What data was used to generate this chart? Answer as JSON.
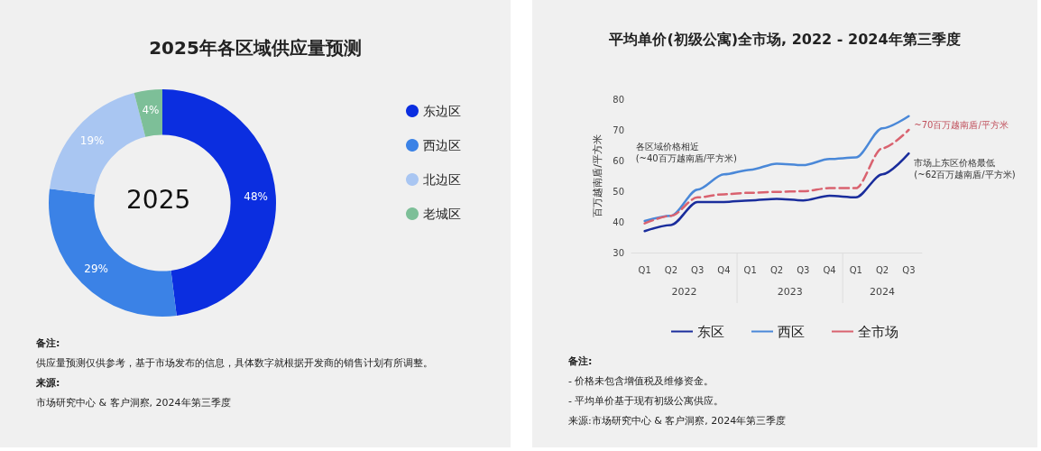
{
  "chart_data": [
    {
      "type": "donut",
      "title": "2025年各区域供应量预测",
      "categories": [
        "东边区",
        "西边区",
        "北边区",
        "老城区"
      ],
      "values": [
        48,
        29,
        19,
        4
      ],
      "colors": [
        "#0b2ee0",
        "#3b82e6",
        "#a9c6f2",
        "#7dbf98"
      ],
      "value_labels": [
        "48%",
        "29%",
        "19%",
        "4%"
      ],
      "legend": "right",
      "annotations": [
        "2025",
        "备注:",
        "供应量预测仅供参考，基于市场发布的信息，具体数字就根据开发商的销售计划有所调整。",
        "来源:",
        "市场研究中心 & 客户洞察, 2024年第三季度"
      ]
    },
    {
      "type": "line",
      "title": "平均单价(初级公寓)全市场, 2022 - 2024年第三季度",
      "ylabel": "百万越南盾/平方米",
      "categories": [
        "Q1",
        "Q2",
        "Q3",
        "Q4",
        "Q1",
        "Q2",
        "Q3",
        "Q4",
        "Q1",
        "Q2",
        "Q3"
      ],
      "ylim": [
        30,
        80
      ],
      "yticks": [
        30,
        40,
        50,
        60,
        70,
        80
      ],
      "legend": "bottom",
      "series": [
        {
          "name": "东区",
          "color": "#1a2d9c",
          "line_style": "solid",
          "values": [
            37,
            39,
            46.5,
            46.5,
            47,
            47.5,
            47,
            48.5,
            48,
            55.5,
            62.3
          ]
        },
        {
          "name": "西区",
          "color": "#4a88d8",
          "line_style": "solid",
          "values": [
            40.3,
            42,
            50.5,
            55.5,
            57,
            59,
            58.5,
            60.5,
            61,
            70.5,
            74.5
          ]
        },
        {
          "name": "全市场",
          "color": "#d9626f",
          "line_style": "dashed",
          "values": [
            39.5,
            42,
            48,
            49,
            49.5,
            49.8,
            50,
            51,
            51,
            64,
            70
          ]
        }
      ],
      "annotations": [
        "各区域价格相近\n(~40百万越南盾/平方米)",
        "~70百万越南盾/平方米",
        "市场上东区价格最低\n(~62百万越南盾/平方米)",
        "2022",
        "2023",
        "2024",
        "备注:",
        "- 价格未包含增值税及维修资金。",
        "- 平均单价基于现有初级公寓供应。",
        "来源:市场研究中心 & 客户洞察, 2024年第三季度"
      ]
    }
  ]
}
